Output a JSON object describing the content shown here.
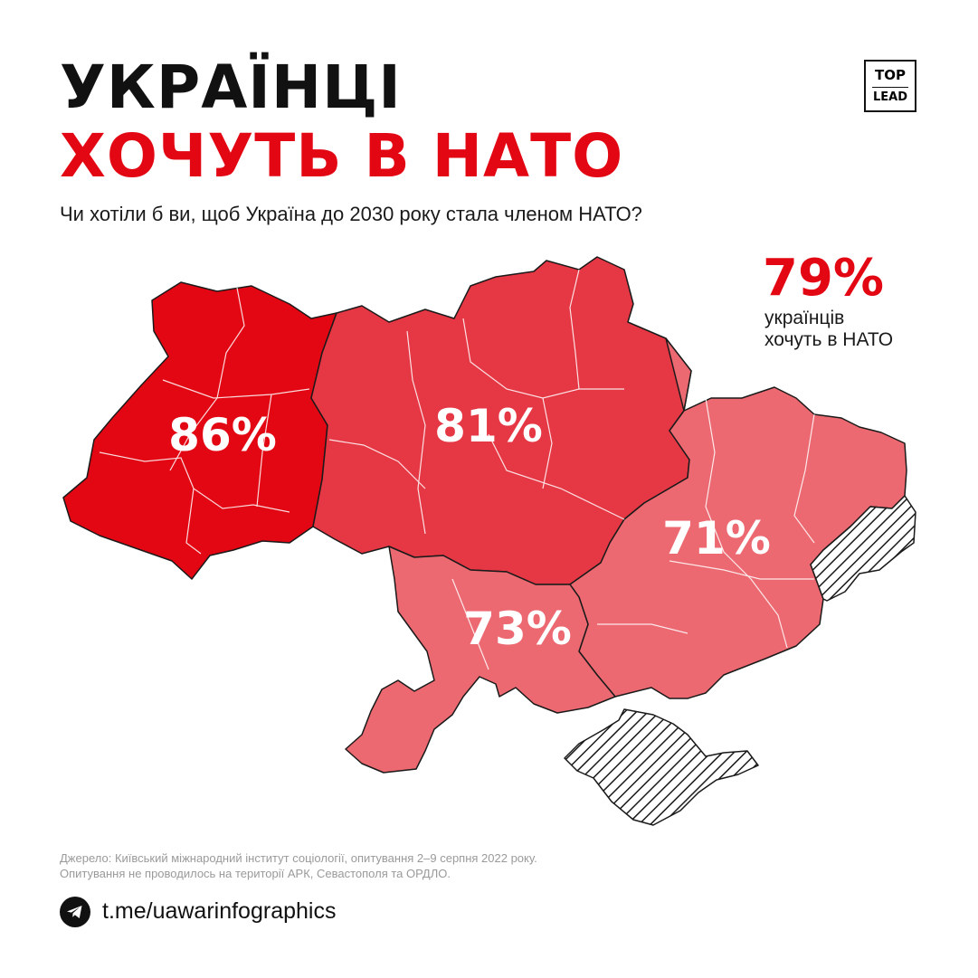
{
  "title": {
    "line1": "УКРАЇНЦІ",
    "line2": "ХОЧУТЬ В НАТО"
  },
  "question": "Чи хотіли б ви, щоб Україна до 2030 року стала членом НАТО?",
  "logo": {
    "top": "TOP",
    "bottom": "LEAD"
  },
  "national": {
    "value": "79%",
    "caption_line1": "українців",
    "caption_line2": "хочуть в НАТО"
  },
  "regions": {
    "west": {
      "label": "86%",
      "value": 86,
      "color": "#e30613"
    },
    "center": {
      "label": "81%",
      "value": 81,
      "color": "#e63744"
    },
    "east": {
      "label": "71%",
      "value": 71,
      "color": "#ec6971"
    },
    "south": {
      "label": "73%",
      "value": 73,
      "color": "#ec6971"
    }
  },
  "occupied_fill": "hatched",
  "source": {
    "line1": "Джерело: Київський міжнародний інститут соціології, опитування 2–9 серпня 2022 року.",
    "line2": "Опитування не проводилось на території АРК, Севастополя та ОРДЛО."
  },
  "footer": {
    "icon": "telegram-icon",
    "link": "t.me/uawarinfographics"
  },
  "colors": {
    "accent_red": "#e30613",
    "text_dark": "#111111",
    "source_grey": "#9a9a9a"
  }
}
